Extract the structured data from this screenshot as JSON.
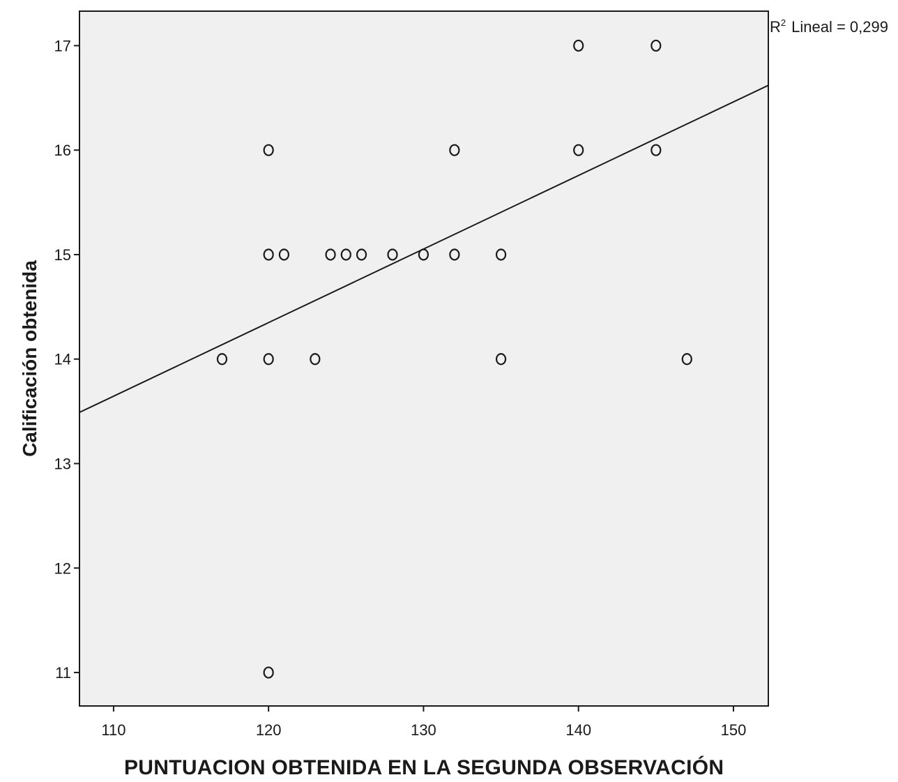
{
  "chart_data": {
    "type": "scatter",
    "title": "",
    "xlabel": "PUNTUACION OBTENIDA EN LA SEGUNDA OBSERVACIÓN",
    "ylabel": "Calificación obtenida",
    "xlim": [
      107.8,
      152.25
    ],
    "ylim": [
      10.68,
      17.33
    ],
    "xticks": [
      110,
      120,
      130,
      140,
      150
    ],
    "yticks": [
      11,
      12,
      13,
      14,
      15,
      16,
      17
    ],
    "grid": false,
    "annotation": {
      "prefix": "R",
      "sup": "2",
      "text": "Lineal = 0,299"
    },
    "fit_line": {
      "x": [
        107.8,
        152.25
      ],
      "y": [
        13.49,
        16.62
      ]
    },
    "points": [
      {
        "x": 140,
        "y": 17
      },
      {
        "x": 145,
        "y": 17
      },
      {
        "x": 120,
        "y": 16
      },
      {
        "x": 132,
        "y": 16
      },
      {
        "x": 140,
        "y": 16
      },
      {
        "x": 145,
        "y": 16
      },
      {
        "x": 120,
        "y": 15
      },
      {
        "x": 121,
        "y": 15
      },
      {
        "x": 124,
        "y": 15
      },
      {
        "x": 125,
        "y": 15
      },
      {
        "x": 126,
        "y": 15
      },
      {
        "x": 128,
        "y": 15
      },
      {
        "x": 130,
        "y": 15
      },
      {
        "x": 132,
        "y": 15
      },
      {
        "x": 135,
        "y": 15
      },
      {
        "x": 117,
        "y": 14
      },
      {
        "x": 120,
        "y": 14
      },
      {
        "x": 123,
        "y": 14
      },
      {
        "x": 135,
        "y": 14
      },
      {
        "x": 147,
        "y": 14
      },
      {
        "x": 120,
        "y": 11
      }
    ],
    "colors": {
      "plot_bg": "#f0f0f0",
      "marks": "#1a1a1a"
    }
  }
}
